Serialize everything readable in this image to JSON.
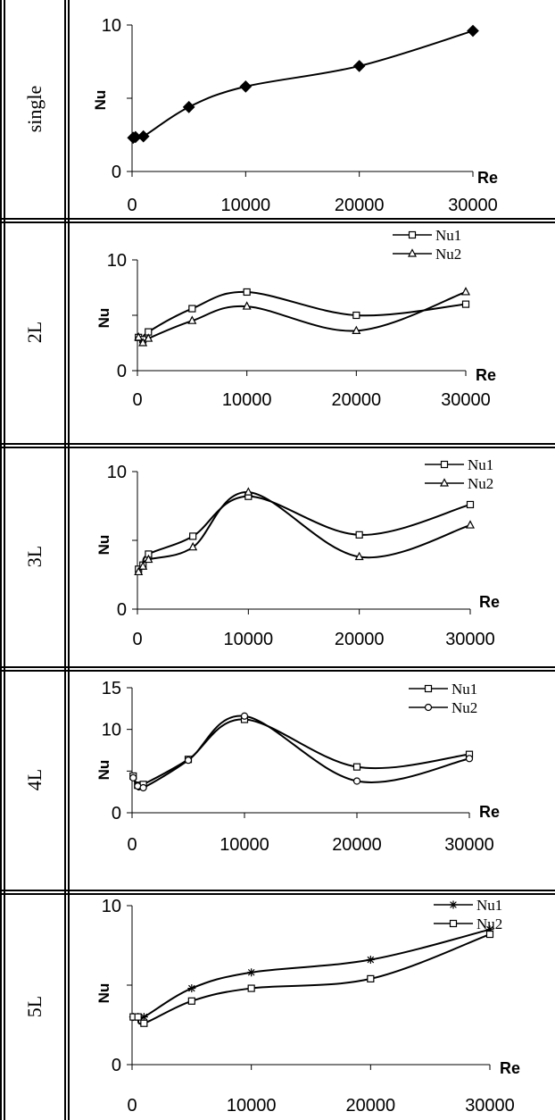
{
  "chart_data": [
    {
      "type": "line",
      "row_label": "single",
      "xlabel": "Re",
      "ylabel": "Nu",
      "xlim": [
        0,
        30000
      ],
      "ylim": [
        0,
        10
      ],
      "yticks": [
        0,
        5,
        10
      ],
      "ytick_labels": [
        "0",
        "",
        "10"
      ],
      "xticks": [
        0,
        10000,
        20000,
        30000
      ],
      "xtick_labels": [
        "0",
        "10000",
        "20000",
        "30000"
      ],
      "legend": false,
      "series": [
        {
          "marker": "diamond-filled",
          "x": [
            100,
            300,
            1000,
            5000,
            10000,
            20000,
            30000
          ],
          "y": [
            2.3,
            2.35,
            2.4,
            4.4,
            5.8,
            7.2,
            9.6
          ]
        }
      ]
    },
    {
      "type": "line",
      "row_label": "2L",
      "xlabel": "Re",
      "ylabel": "Nu",
      "xlim": [
        0,
        30000
      ],
      "ylim": [
        0,
        10
      ],
      "yticks": [
        0,
        5,
        10
      ],
      "ytick_labels": [
        "0",
        "",
        "10"
      ],
      "xticks": [
        0,
        10000,
        20000,
        30000
      ],
      "xtick_labels": [
        "0",
        "10000",
        "20000",
        "30000"
      ],
      "legend": true,
      "series": [
        {
          "name": "Nu1",
          "marker": "square",
          "x": [
            100,
            500,
            1000,
            5000,
            10000,
            20000,
            30000
          ],
          "y": [
            3.0,
            2.8,
            3.5,
            5.6,
            7.1,
            5.0,
            6.0
          ]
        },
        {
          "name": "Nu2",
          "marker": "triangle",
          "x": [
            100,
            500,
            1000,
            5000,
            10000,
            20000,
            30000
          ],
          "y": [
            3.0,
            2.5,
            2.9,
            4.5,
            5.8,
            3.6,
            7.1
          ]
        }
      ]
    },
    {
      "type": "line",
      "row_label": "3L",
      "xlabel": "Re",
      "ylabel": "Nu",
      "xlim": [
        0,
        30000
      ],
      "ylim": [
        0,
        10
      ],
      "yticks": [
        0,
        5,
        10
      ],
      "ytick_labels": [
        "0",
        "",
        "10"
      ],
      "xticks": [
        0,
        10000,
        20000,
        30000
      ],
      "xtick_labels": [
        "0",
        "10000",
        "20000",
        "30000"
      ],
      "legend": true,
      "series": [
        {
          "name": "Nu1",
          "marker": "square",
          "x": [
            100,
            500,
            1000,
            5000,
            10000,
            20000,
            30000
          ],
          "y": [
            2.9,
            3.2,
            4.0,
            5.3,
            8.2,
            5.4,
            7.6
          ]
        },
        {
          "name": "Nu2",
          "marker": "triangle",
          "x": [
            100,
            500,
            1000,
            5000,
            10000,
            20000,
            30000
          ],
          "y": [
            2.7,
            3.1,
            3.6,
            4.5,
            8.5,
            3.8,
            6.1
          ]
        }
      ]
    },
    {
      "type": "line",
      "row_label": "4L",
      "xlabel": "Re",
      "ylabel": "Nu",
      "xlim": [
        0,
        30000
      ],
      "ylim": [
        0,
        15
      ],
      "yticks": [
        0,
        5,
        10,
        15
      ],
      "ytick_labels": [
        "0",
        "",
        "10",
        "15"
      ],
      "xticks": [
        0,
        10000,
        20000,
        30000
      ],
      "xtick_labels": [
        "0",
        "10000",
        "20000",
        "30000"
      ],
      "legend": true,
      "series": [
        {
          "name": "Nu1",
          "marker": "square",
          "x": [
            100,
            500,
            1000,
            5000,
            10000,
            20000,
            30000
          ],
          "y": [
            4.4,
            3.3,
            3.4,
            6.4,
            11.2,
            5.5,
            7.0
          ]
        },
        {
          "name": "Nu2",
          "marker": "circle",
          "x": [
            100,
            500,
            1000,
            5000,
            10000,
            20000,
            30000
          ],
          "y": [
            4.2,
            3.2,
            3.0,
            6.3,
            11.6,
            3.8,
            6.5
          ]
        }
      ]
    },
    {
      "type": "line",
      "row_label": "5L",
      "xlabel": "Re",
      "ylabel": "Nu",
      "xlim": [
        0,
        30000
      ],
      "ylim": [
        0,
        10
      ],
      "yticks": [
        0,
        5,
        10
      ],
      "ytick_labels": [
        "0",
        "",
        "10"
      ],
      "xticks": [
        0,
        10000,
        20000,
        30000
      ],
      "xtick_labels": [
        "0",
        "10000",
        "20000",
        "30000"
      ],
      "legend": true,
      "series": [
        {
          "name": "Nu1",
          "marker": "star",
          "x": [
            100,
            500,
            1000,
            5000,
            10000,
            20000,
            30000
          ],
          "y": [
            3.0,
            3.0,
            3.0,
            4.8,
            5.8,
            6.6,
            8.5
          ]
        },
        {
          "name": "Nu2",
          "marker": "square",
          "x": [
            100,
            500,
            1000,
            5000,
            10000,
            20000,
            30000
          ],
          "y": [
            3.0,
            3.0,
            2.6,
            4.0,
            4.8,
            5.4,
            8.2
          ]
        }
      ]
    }
  ]
}
